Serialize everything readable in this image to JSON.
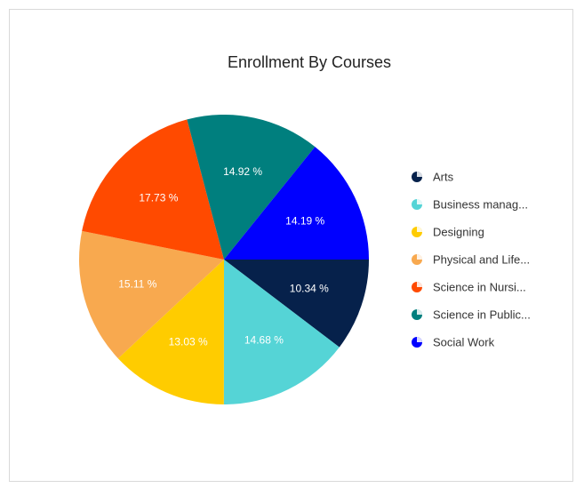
{
  "chart_data": {
    "type": "pie",
    "title": "Enrollment By Courses",
    "start_angle_deg": 90,
    "direction": "clockwise",
    "legend_position": "right",
    "slices": [
      {
        "name": "Arts",
        "legend_label": "Arts",
        "value": 10.34,
        "label": "10.34 %",
        "color": "#06214B"
      },
      {
        "name": "Business management",
        "legend_label": "Business manag...",
        "value": 14.68,
        "label": "14.68 %",
        "color": "#55D4D6"
      },
      {
        "name": "Designing",
        "legend_label": "Designing",
        "value": 13.03,
        "label": "13.03 %",
        "color": "#FFCC00"
      },
      {
        "name": "Physical and Life Sciences",
        "legend_label": "Physical and Life...",
        "value": 15.11,
        "label": "15.11 %",
        "color": "#F8A94F"
      },
      {
        "name": "Science in Nursing",
        "legend_label": "Science in Nursi...",
        "value": 17.73,
        "label": "17.73 %",
        "color": "#FF4A00"
      },
      {
        "name": "Science in Public Health",
        "legend_label": "Science in Public...",
        "value": 14.92,
        "label": "14.92 %",
        "color": "#007F7E"
      },
      {
        "name": "Social Work",
        "legend_label": "Social Work",
        "value": 14.19,
        "label": "14.19 %",
        "color": "#0000FF"
      }
    ]
  }
}
